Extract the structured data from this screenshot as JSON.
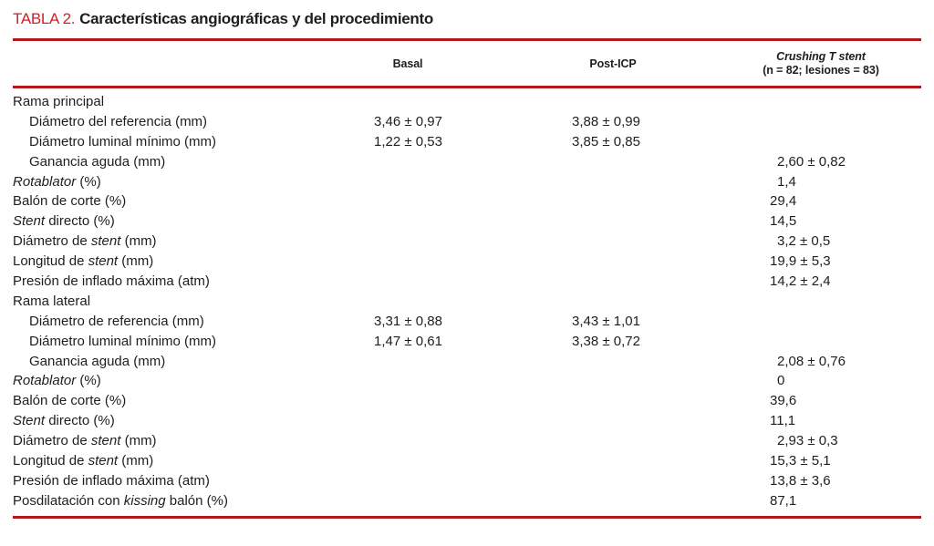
{
  "title": {
    "tag": "TABLA 2.",
    "text": "Características angiográficas y del procedimiento"
  },
  "colors": {
    "title_red": "#cf2127",
    "rule_red": "#b5171d",
    "text": "#1e1e1e"
  },
  "table": {
    "header": {
      "basal": "Basal",
      "post_icp": "Post-ICP",
      "crushing_line1": "Crushing T stent",
      "crushing_line2": "(n = 82; lesiones = 83)"
    },
    "rows": [
      {
        "label": [
          {
            "text": "Rama principal"
          }
        ],
        "indent": false,
        "basal": "",
        "post_icp": "",
        "crushing": ""
      },
      {
        "label": [
          {
            "text": "Diámetro del referencia (mm)"
          }
        ],
        "indent": true,
        "basal": "3,46 ± 0,97",
        "post_icp": "3,88 ± 0,99",
        "crushing": ""
      },
      {
        "label": [
          {
            "text": "Diámetro luminal mínimo (mm)"
          }
        ],
        "indent": true,
        "basal": "1,22 ± 0,53",
        "post_icp": "3,85 ± 0,85",
        "crushing": ""
      },
      {
        "label": [
          {
            "text": "Ganancia aguda (mm)"
          }
        ],
        "indent": true,
        "basal": "",
        "post_icp": "",
        "crushing": "2,60 ± 0,82"
      },
      {
        "label": [
          {
            "text": "Rotablator",
            "italic": true
          },
          {
            "text": " (%)"
          }
        ],
        "indent": false,
        "basal": "",
        "post_icp": "",
        "crushing": "1,4"
      },
      {
        "label": [
          {
            "text": "Balón de corte (%)"
          }
        ],
        "indent": false,
        "basal": "",
        "post_icp": "",
        "crushing": "29,4"
      },
      {
        "label": [
          {
            "text": "Stent",
            "italic": true
          },
          {
            "text": " directo (%)"
          }
        ],
        "indent": false,
        "basal": "",
        "post_icp": "",
        "crushing": "14,5"
      },
      {
        "label": [
          {
            "text": "Diámetro de "
          },
          {
            "text": "stent",
            "italic": true
          },
          {
            "text": " (mm)"
          }
        ],
        "indent": false,
        "basal": "",
        "post_icp": "",
        "crushing": "3,2 ± 0,5"
      },
      {
        "label": [
          {
            "text": "Longitud de "
          },
          {
            "text": "stent",
            "italic": true
          },
          {
            "text": " (mm)"
          }
        ],
        "indent": false,
        "basal": "",
        "post_icp": "",
        "crushing": "19,9 ± 5,3"
      },
      {
        "label": [
          {
            "text": "Presión de inflado máxima (atm)"
          }
        ],
        "indent": false,
        "basal": "",
        "post_icp": "",
        "crushing": "14,2 ± 2,4"
      },
      {
        "label": [
          {
            "text": "Rama lateral"
          }
        ],
        "indent": false,
        "basal": "",
        "post_icp": "",
        "crushing": ""
      },
      {
        "label": [
          {
            "text": "Diámetro de referencia (mm)"
          }
        ],
        "indent": true,
        "basal": "3,31 ± 0,88",
        "post_icp": "3,43 ± 1,01",
        "crushing": ""
      },
      {
        "label": [
          {
            "text": "Diámetro luminal mínimo (mm)"
          }
        ],
        "indent": true,
        "basal": "1,47 ± 0,61",
        "post_icp": "3,38 ± 0,72",
        "crushing": ""
      },
      {
        "label": [
          {
            "text": "Ganancia aguda (mm)"
          }
        ],
        "indent": true,
        "basal": "",
        "post_icp": "",
        "crushing": "2,08 ± 0,76"
      },
      {
        "label": [
          {
            "text": "Rotablator",
            "italic": true
          },
          {
            "text": " (%)"
          }
        ],
        "indent": false,
        "basal": "",
        "post_icp": "",
        "crushing": "0"
      },
      {
        "label": [
          {
            "text": "Balón de corte (%)"
          }
        ],
        "indent": false,
        "basal": "",
        "post_icp": "",
        "crushing": "39,6"
      },
      {
        "label": [
          {
            "text": "Stent",
            "italic": true
          },
          {
            "text": " directo (%)"
          }
        ],
        "indent": false,
        "basal": "",
        "post_icp": "",
        "crushing": "11,1"
      },
      {
        "label": [
          {
            "text": "Diámetro de "
          },
          {
            "text": "stent",
            "italic": true
          },
          {
            "text": " (mm)"
          }
        ],
        "indent": false,
        "basal": "",
        "post_icp": "",
        "crushing": "2,93 ± 0,3"
      },
      {
        "label": [
          {
            "text": "Longitud de "
          },
          {
            "text": "stent",
            "italic": true
          },
          {
            "text": " (mm)"
          }
        ],
        "indent": false,
        "basal": "",
        "post_icp": "",
        "crushing": "15,3 ± 5,1"
      },
      {
        "label": [
          {
            "text": "Presión de inflado máxima (atm)"
          }
        ],
        "indent": false,
        "basal": "",
        "post_icp": "",
        "crushing": "13,8 ± 3,6"
      },
      {
        "label": [
          {
            "text": "Posdilatación con "
          },
          {
            "text": "kissing",
            "italic": true
          },
          {
            "text": " balón (%)"
          }
        ],
        "indent": false,
        "basal": "",
        "post_icp": "",
        "crushing": "87,1"
      }
    ]
  }
}
